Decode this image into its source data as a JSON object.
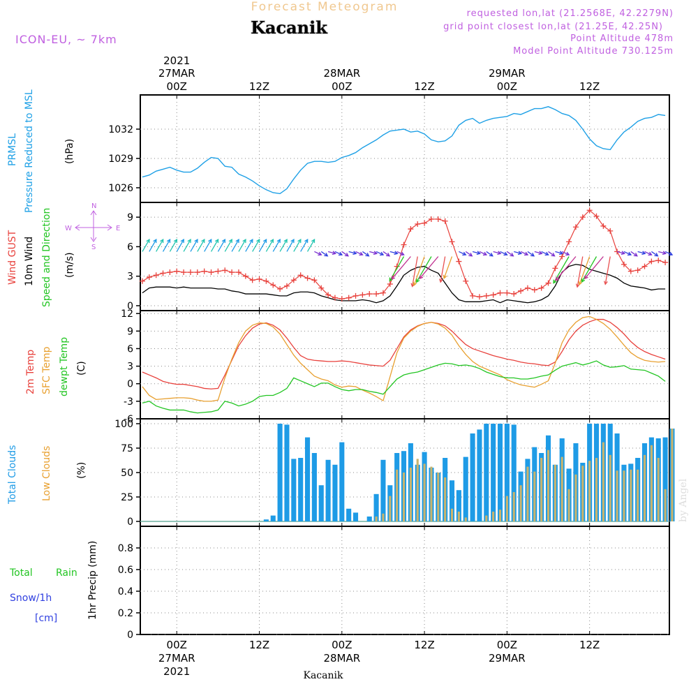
{
  "header": {
    "product_title": "Forecast Meteogram",
    "location": "Kacanik",
    "model": "ICON-EU, ~ 7km",
    "requested": "requested lon,lat (21.2568E, 42.2279N)",
    "grid_point": "grid point closest lon,lat (21.25E, 42.25N)",
    "point_altitude": "Point Altitude 478m",
    "model_point_altitude": "Model Point Altitude 730.125m",
    "footer_location": "Kacanik",
    "credit": "by Angel"
  },
  "time_axis": {
    "year": "2021",
    "ticks": [
      {
        "hour": 0,
        "top": "00Z",
        "day": "27MAR",
        "year": "2021"
      },
      {
        "hour": 12,
        "top": "12Z",
        "day": "",
        "year": ""
      },
      {
        "hour": 24,
        "top": "00Z",
        "day": "28MAR",
        "year": ""
      },
      {
        "hour": 36,
        "top": "12Z",
        "day": "",
        "year": ""
      },
      {
        "hour": 48,
        "top": "00Z",
        "day": "29MAR",
        "year": ""
      },
      {
        "hour": 60,
        "top": "12Z",
        "day": "",
        "year": ""
      }
    ]
  },
  "panel_labels": {
    "pressure": [
      "PRMSL",
      "Pressure Reduced to MSL",
      "(hPa)"
    ],
    "wind": [
      "Wind GUST",
      "10m Wind",
      "Speed and Direction",
      "(m/s)"
    ],
    "compass": {
      "n": "N",
      "s": "S",
      "w": "W",
      "e": "E"
    },
    "temp": [
      "2m Temp",
      "SFC Temp",
      "dewpt Temp",
      "(C)"
    ],
    "clouds": [
      "Total Clouds",
      "Low Clouds",
      "(%)"
    ],
    "precip": [
      "Total",
      "Rain",
      "Snow/1h",
      "[cm]",
      "1hr Precip (mm)"
    ]
  },
  "colors": {
    "pressure": "#1ea0e6",
    "gust": "#e8413c",
    "wind": "#000000",
    "t2m": "#e8413c",
    "sfc": "#e8a030",
    "dewpt": "#22c522",
    "total_clouds": "#1e9be6",
    "low_clouds": "#c8b46e",
    "rain": "#22c522",
    "snow": "#3040e0",
    "title_orange": "#f0c890",
    "purple": "#c060e0"
  },
  "chart_data": [
    {
      "type": "line",
      "panel": "pressure",
      "ylabel": "PRMSL Pressure Reduced to MSL (hPa)",
      "ylim": [
        1024.5,
        1035.5
      ],
      "yticks": [
        1026,
        1029,
        1032
      ],
      "x_hours": [
        -5,
        -4,
        -3,
        -2,
        -1,
        0,
        1,
        2,
        3,
        4,
        5,
        6,
        7,
        8,
        9,
        10,
        11,
        12,
        13,
        14,
        15,
        16,
        17,
        18,
        19,
        20,
        21,
        22,
        23,
        24,
        25,
        26,
        27,
        28,
        29,
        30,
        31,
        32,
        33,
        34,
        35,
        36,
        37,
        38,
        39,
        40,
        41,
        42,
        43,
        44,
        45,
        46,
        47,
        48,
        49,
        50,
        51,
        52,
        53,
        54,
        55,
        56,
        57,
        58,
        59,
        60,
        61,
        62,
        63,
        64,
        65,
        66,
        67,
        68,
        69,
        70,
        71
      ],
      "series": [
        {
          "values": [
            1027.1,
            1027.3,
            1027.7,
            1027.9,
            1028.1,
            1027.8,
            1027.6,
            1027.6,
            1028.0,
            1028.6,
            1029.1,
            1029.0,
            1028.2,
            1028.1,
            1027.4,
            1027.1,
            1026.7,
            1026.2,
            1025.8,
            1025.5,
            1025.4,
            1025.9,
            1026.9,
            1027.8,
            1028.5,
            1028.7,
            1028.7,
            1028.6,
            1028.7,
            1029.1,
            1029.3,
            1029.6,
            1030.1,
            1030.5,
            1030.9,
            1031.4,
            1031.8,
            1031.9,
            1032.0,
            1031.7,
            1031.8,
            1031.5,
            1030.9,
            1030.7,
            1030.8,
            1031.3,
            1032.4,
            1032.9,
            1033.1,
            1032.6,
            1032.9,
            1033.1,
            1033.2,
            1033.3,
            1033.6,
            1033.5,
            1033.8,
            1034.1,
            1034.1,
            1034.3,
            1034.0,
            1033.6,
            1033.4,
            1032.9,
            1032.0,
            1031.0,
            1030.3,
            1030.0,
            1029.9,
            1030.9,
            1031.7,
            1032.2,
            1032.8,
            1033.1,
            1033.2,
            1033.5,
            1033.4
          ]
        }
      ]
    },
    {
      "type": "line",
      "panel": "wind",
      "ylabel": "(m/s)",
      "ylim": [
        -0.5,
        10.5
      ],
      "yticks": [
        0,
        3,
        6,
        9
      ],
      "x_hours": [
        -5,
        -4,
        -3,
        -2,
        -1,
        0,
        1,
        2,
        3,
        4,
        5,
        6,
        7,
        8,
        9,
        10,
        11,
        12,
        13,
        14,
        15,
        16,
        17,
        18,
        19,
        20,
        21,
        22,
        23,
        24,
        25,
        26,
        27,
        28,
        29,
        30,
        31,
        32,
        33,
        34,
        35,
        36,
        37,
        38,
        39,
        40,
        41,
        42,
        43,
        44,
        45,
        46,
        47,
        48,
        49,
        50,
        51,
        52,
        53,
        54,
        55,
        56,
        57,
        58,
        59,
        60,
        61,
        62,
        63,
        64,
        65,
        66,
        67,
        68,
        69,
        70,
        71
      ],
      "series": [
        {
          "name": "Wind GUST",
          "values": [
            2.5,
            2.9,
            3.1,
            3.3,
            3.4,
            3.5,
            3.4,
            3.4,
            3.4,
            3.5,
            3.4,
            3.5,
            3.6,
            3.4,
            3.4,
            3.0,
            2.6,
            2.7,
            2.5,
            2.1,
            1.7,
            2.0,
            2.6,
            3.1,
            2.8,
            2.6,
            1.8,
            1.1,
            0.8,
            0.7,
            0.8,
            1.0,
            1.1,
            1.2,
            1.2,
            1.3,
            2.2,
            4.0,
            6.2,
            7.8,
            8.3,
            8.4,
            8.8,
            8.8,
            8.6,
            6.5,
            4.5,
            2.5,
            1.0,
            0.9,
            1.0,
            1.1,
            1.3,
            1.3,
            1.2,
            1.5,
            1.8,
            1.6,
            1.8,
            2.3,
            3.8,
            5.0,
            6.5,
            8.0,
            9.0,
            9.7,
            9.1,
            8.1,
            7.6,
            5.5,
            4.2,
            3.5,
            3.6,
            4.0,
            4.5,
            4.6,
            4.4
          ]
        },
        {
          "name": "10m Wind",
          "values": [
            1.3,
            1.8,
            1.9,
            1.9,
            1.9,
            1.8,
            1.9,
            1.8,
            1.8,
            1.8,
            1.8,
            1.7,
            1.7,
            1.5,
            1.4,
            1.2,
            1.2,
            1.2,
            1.2,
            1.1,
            1.0,
            1.0,
            1.3,
            1.4,
            1.4,
            1.3,
            1.0,
            0.8,
            0.6,
            0.5,
            0.5,
            0.5,
            0.6,
            0.5,
            0.3,
            0.5,
            1.0,
            2.0,
            3.1,
            3.6,
            3.9,
            4.0,
            3.6,
            3.3,
            2.3,
            1.3,
            0.6,
            0.4,
            0.4,
            0.4,
            0.5,
            0.6,
            0.3,
            0.6,
            0.5,
            0.4,
            0.3,
            0.4,
            0.6,
            1.0,
            2.0,
            3.4,
            4.0,
            4.2,
            4.1,
            3.7,
            3.5,
            3.3,
            3.1,
            2.8,
            2.3,
            2.0,
            1.9,
            1.8,
            1.6,
            1.7,
            1.7
          ]
        }
      ]
    },
    {
      "type": "line",
      "panel": "temperature",
      "ylabel": "(C)",
      "ylim": [
        -6,
        12.5
      ],
      "yticks": [
        -6,
        -3,
        0,
        3,
        6,
        9,
        12
      ],
      "x_hours": [
        -5,
        -4,
        -3,
        -2,
        -1,
        0,
        1,
        2,
        3,
        4,
        5,
        6,
        7,
        8,
        9,
        10,
        11,
        12,
        13,
        14,
        15,
        16,
        17,
        18,
        19,
        20,
        21,
        22,
        23,
        24,
        25,
        26,
        27,
        28,
        29,
        30,
        31,
        32,
        33,
        34,
        35,
        36,
        37,
        38,
        39,
        40,
        41,
        42,
        43,
        44,
        45,
        46,
        47,
        48,
        49,
        50,
        51,
        52,
        53,
        54,
        55,
        56,
        57,
        58,
        59,
        60,
        61,
        62,
        63,
        64,
        65,
        66,
        67,
        68,
        69,
        70,
        71
      ],
      "series": [
        {
          "name": "2m Temp",
          "values": [
            2.0,
            1.5,
            1.0,
            0.4,
            0.1,
            -0.1,
            -0.1,
            -0.3,
            -0.5,
            -0.8,
            -0.9,
            -0.8,
            1.5,
            4.0,
            6.5,
            8.2,
            9.5,
            10.2,
            10.4,
            10.0,
            9.2,
            7.8,
            6.2,
            4.8,
            4.2,
            4.0,
            3.9,
            3.8,
            3.8,
            3.9,
            3.8,
            3.6,
            3.4,
            3.2,
            3.1,
            3.0,
            4.0,
            6.0,
            8.0,
            9.2,
            9.9,
            10.3,
            10.5,
            10.3,
            9.9,
            9.0,
            7.8,
            6.7,
            6.0,
            5.6,
            5.2,
            4.8,
            4.5,
            4.2,
            4.0,
            3.7,
            3.5,
            3.4,
            3.2,
            3.1,
            3.7,
            5.5,
            7.5,
            9.0,
            10.0,
            10.6,
            11.0,
            11.0,
            10.5,
            9.6,
            8.5,
            7.2,
            6.2,
            5.5,
            5.0,
            4.6,
            4.2
          ]
        },
        {
          "name": "SFC Temp",
          "values": [
            -0.5,
            -2.0,
            -2.7,
            -2.6,
            -2.5,
            -2.4,
            -2.4,
            -2.5,
            -2.8,
            -3.0,
            -3.0,
            -2.8,
            1.0,
            4.2,
            7.0,
            9.0,
            10.0,
            10.4,
            10.3,
            9.7,
            8.5,
            6.7,
            4.9,
            3.5,
            2.4,
            1.3,
            0.8,
            0.5,
            -0.2,
            -0.6,
            -0.4,
            -0.5,
            -1.1,
            -1.6,
            -2.2,
            -2.9,
            1.2,
            5.3,
            7.8,
            9.0,
            9.8,
            10.3,
            10.5,
            10.2,
            9.5,
            8.3,
            6.5,
            5.0,
            3.8,
            3.0,
            2.5,
            2.0,
            1.5,
            0.7,
            0.2,
            -0.2,
            -0.4,
            -0.6,
            -0.1,
            0.5,
            3.5,
            7.0,
            9.2,
            10.5,
            11.3,
            11.5,
            11.0,
            10.3,
            9.3,
            8.0,
            6.6,
            5.3,
            4.5,
            4.0,
            3.8,
            3.7,
            3.8
          ]
        },
        {
          "name": "dewpt Temp",
          "values": [
            -3.3,
            -3.0,
            -3.8,
            -4.2,
            -4.5,
            -4.5,
            -4.5,
            -4.8,
            -5.0,
            -4.9,
            -4.8,
            -4.5,
            -3.0,
            -3.3,
            -3.8,
            -3.5,
            -3.0,
            -2.2,
            -2.0,
            -2.0,
            -1.5,
            -0.8,
            1.0,
            0.5,
            0.0,
            -0.5,
            0.1,
            0.1,
            -0.5,
            -1.0,
            -1.2,
            -1.0,
            -1.0,
            -1.3,
            -1.5,
            -1.8,
            -0.5,
            0.8,
            1.5,
            1.8,
            2.0,
            2.4,
            2.8,
            3.2,
            3.5,
            3.4,
            3.1,
            3.2,
            3.0,
            2.6,
            2.0,
            1.6,
            1.2,
            1.0,
            1.0,
            0.8,
            0.8,
            1.0,
            1.3,
            1.5,
            2.3,
            3.0,
            3.3,
            3.6,
            3.2,
            3.5,
            3.9,
            3.2,
            2.8,
            2.9,
            3.1,
            2.5,
            2.4,
            2.3,
            1.8,
            1.3,
            0.4
          ]
        }
      ]
    },
    {
      "type": "bar",
      "panel": "clouds",
      "ylabel": "(%)",
      "ylim": [
        -5,
        105
      ],
      "yticks": [
        0,
        25,
        50,
        75,
        100
      ],
      "x_hours": [
        -5,
        -4,
        -3,
        -2,
        -1,
        0,
        1,
        2,
        3,
        4,
        5,
        6,
        7,
        8,
        9,
        10,
        11,
        12,
        13,
        14,
        15,
        16,
        17,
        18,
        19,
        20,
        21,
        22,
        23,
        24,
        25,
        26,
        27,
        28,
        29,
        30,
        31,
        32,
        33,
        34,
        35,
        36,
        37,
        38,
        39,
        40,
        41,
        42,
        43,
        44,
        45,
        46,
        47,
        48,
        49,
        50,
        51,
        52,
        53,
        54,
        55,
        56,
        57,
        58,
        59,
        60,
        61,
        62,
        63,
        64,
        65,
        66,
        67,
        68,
        69,
        70,
        71,
        72
      ],
      "series": [
        {
          "name": "Total Clouds",
          "values": [
            0,
            0,
            0,
            0,
            0,
            0,
            0,
            0,
            0,
            0,
            0,
            0,
            0,
            0,
            0,
            0,
            0,
            0,
            2,
            6,
            100,
            99,
            64,
            65,
            86,
            70,
            37,
            63,
            58,
            81,
            13,
            9,
            0,
            5,
            28,
            63,
            37,
            70,
            72,
            80,
            58,
            71,
            55,
            50,
            65,
            42,
            32,
            66,
            90,
            94,
            100,
            100,
            100,
            100,
            99,
            51,
            64,
            76,
            70,
            88,
            58,
            85,
            54,
            80,
            60,
            100,
            100,
            100,
            100,
            90,
            58,
            59,
            65,
            80,
            86,
            85,
            86,
            95
          ]
        },
        {
          "name": "Low Clouds",
          "values": [
            0,
            0,
            0,
            0,
            0,
            0,
            0,
            0,
            0,
            0,
            0,
            0,
            0,
            0,
            0,
            0,
            0,
            0,
            0,
            0,
            0,
            0,
            0,
            0,
            0,
            0,
            0,
            0,
            0,
            0,
            0,
            0,
            0,
            0,
            5,
            8,
            26,
            53,
            50,
            55,
            64,
            59,
            56,
            50,
            45,
            13,
            10,
            4,
            0,
            0,
            6,
            10,
            12,
            26,
            30,
            37,
            56,
            51,
            65,
            73,
            58,
            66,
            33,
            48,
            57,
            62,
            65,
            81,
            68,
            52,
            52,
            53,
            53,
            68,
            78,
            65,
            33,
            95
          ]
        }
      ]
    },
    {
      "type": "bar",
      "panel": "precipitation",
      "ylabel": "1hr Precip (mm)",
      "ylim": [
        0,
        1.0
      ],
      "yticks": [
        0,
        0.2,
        0.4,
        0.6,
        0.8
      ],
      "series": [
        {
          "name": "Rain",
          "values": []
        },
        {
          "name": "Snow/1h",
          "values": []
        }
      ]
    }
  ]
}
